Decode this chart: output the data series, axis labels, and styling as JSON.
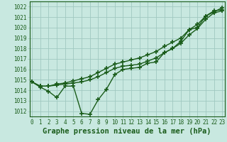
{
  "title": "Graphe pression niveau de la mer (hPa)",
  "xlabel_ticks": [
    0,
    1,
    2,
    3,
    4,
    5,
    6,
    7,
    8,
    9,
    10,
    11,
    12,
    13,
    14,
    15,
    16,
    17,
    18,
    19,
    20,
    21,
    22,
    23
  ],
  "ylim": [
    1011.5,
    1022.5
  ],
  "xlim": [
    -0.3,
    23.3
  ],
  "yticks": [
    1012,
    1013,
    1014,
    1015,
    1016,
    1017,
    1018,
    1019,
    1020,
    1021,
    1022
  ],
  "bg_color": "#c8e8e0",
  "grid_color": "#a0c8c0",
  "line_color": "#1a5c1a",
  "line1": [
    1014.8,
    1014.3,
    1013.9,
    1013.3,
    1014.4,
    1014.4,
    1011.8,
    1011.7,
    1013.1,
    1014.1,
    1015.5,
    1016.0,
    1016.1,
    1016.2,
    1016.6,
    1016.7,
    1017.6,
    1018.0,
    1018.7,
    1019.8,
    1020.0,
    1021.1,
    1021.6,
    1021.7
  ],
  "line2": [
    1014.8,
    1014.4,
    1014.4,
    1014.5,
    1014.6,
    1014.7,
    1014.8,
    1015.0,
    1015.3,
    1015.7,
    1016.1,
    1016.3,
    1016.4,
    1016.5,
    1016.8,
    1017.1,
    1017.6,
    1018.0,
    1018.5,
    1019.3,
    1019.9,
    1020.8,
    1021.4,
    1021.6
  ],
  "line3": [
    1014.8,
    1014.4,
    1014.4,
    1014.6,
    1014.7,
    1014.9,
    1015.1,
    1015.3,
    1015.7,
    1016.1,
    1016.5,
    1016.7,
    1016.9,
    1017.1,
    1017.4,
    1017.7,
    1018.2,
    1018.6,
    1019.0,
    1019.8,
    1020.3,
    1021.1,
    1021.5,
    1021.9
  ],
  "marker": "+",
  "markersize": 4,
  "markeredgewidth": 1.2,
  "linewidth": 1.0,
  "title_fontsize": 7.5,
  "tick_fontsize": 5.5,
  "ytick_fontsize": 5.5
}
